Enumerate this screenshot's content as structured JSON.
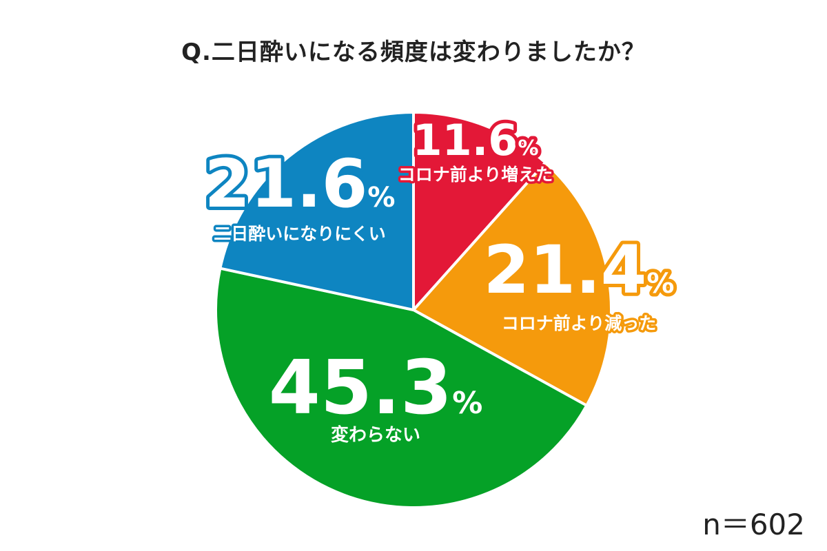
{
  "chart_data": {
    "type": "pie",
    "title": "Q.二日酔いになる頻度は変わりましたか？",
    "unit": "%",
    "slices": [
      {
        "label": "コロナ前より増えた",
        "value": 11.6,
        "color": "#e31837"
      },
      {
        "label": "コロナ前より減った",
        "value": 21.4,
        "color": "#f59a0c"
      },
      {
        "label": "変わらない",
        "value": 45.3,
        "color": "#05a127"
      },
      {
        "label": "二日酔いになりにくい",
        "value": 21.6,
        "color": "#0e85c1"
      }
    ]
  },
  "footnote": "n＝602"
}
